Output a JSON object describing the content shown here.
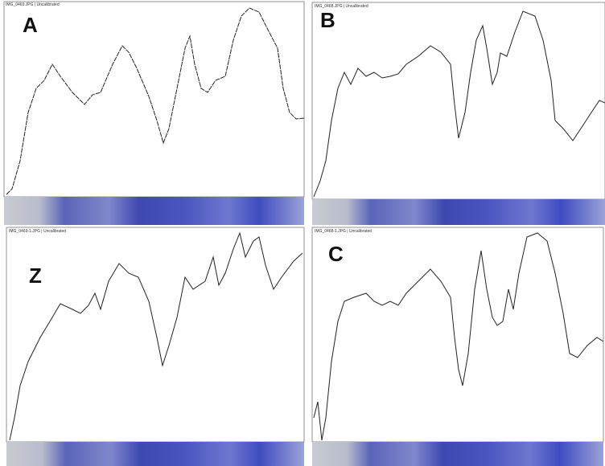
{
  "panels": [
    {
      "label": "A",
      "header": "IMG_0469.JPG | Uncalibrated"
    },
    {
      "label": "B",
      "header": "IMG_0468.JPG | Uncalibrated"
    },
    {
      "label": "Z",
      "header": "IMG_0469-1.JPG | Uncalibrated"
    },
    {
      "label": "C",
      "header": "IMG_0468-1.JPG | Uncalibrated"
    }
  ]
}
